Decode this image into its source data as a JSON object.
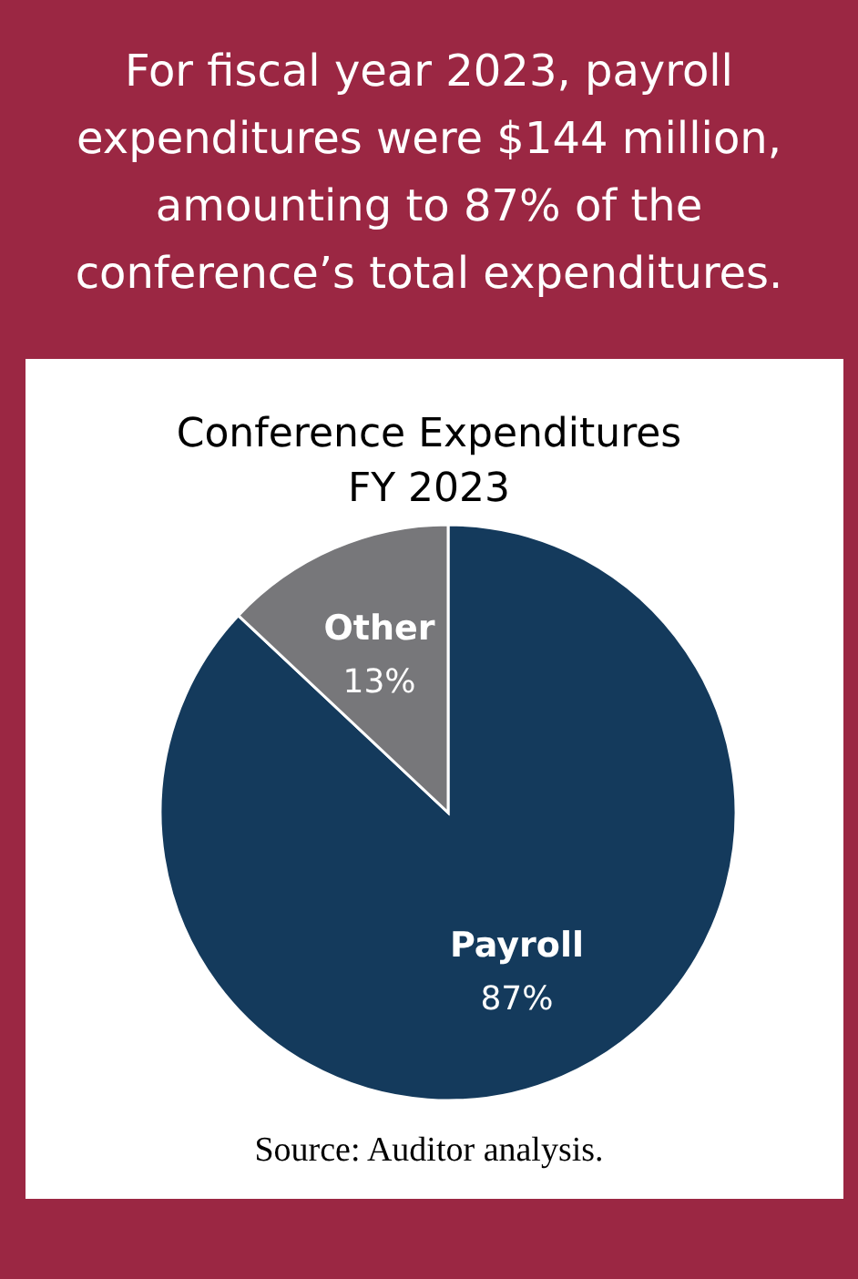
{
  "chart_data": {
    "type": "pie",
    "subtitle": "For fiscal year 2023, payroll\nexpenditures were $144 million,\namounting to 87% of the\nconference’s total expenditures.",
    "title": "Conference Expenditures\nFY 2023",
    "categories": [
      "Payroll",
      "Other"
    ],
    "values": [
      87,
      13
    ],
    "value_labels": [
      "87%",
      "13%"
    ],
    "colors": [
      "#143a5c",
      "#77777a"
    ],
    "annotations": [
      "Source: Auditor analysis."
    ]
  }
}
